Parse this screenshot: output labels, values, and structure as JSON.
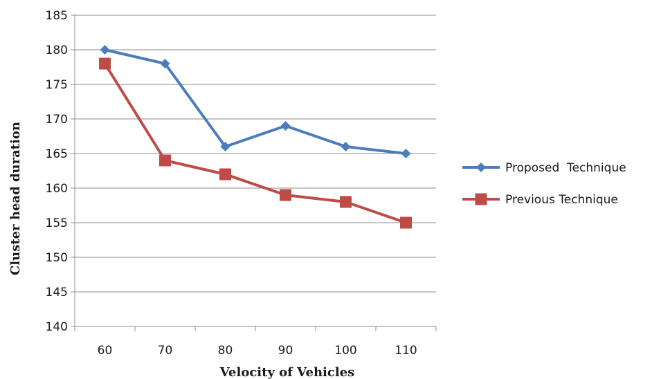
{
  "chart_data": {
    "type": "line",
    "xlabel": "Velocity of Vehicles",
    "ylabel": "Cluster head duration",
    "categories": [
      "60",
      "70",
      "80",
      "90",
      "100",
      "110"
    ],
    "ylim": [
      140,
      185
    ],
    "yticks": [
      140,
      145,
      150,
      155,
      160,
      165,
      170,
      175,
      180,
      185
    ],
    "grid": "horizontal",
    "legend": "right",
    "series": [
      {
        "name": "Proposed  Technique",
        "values": [
          180,
          178,
          166,
          169,
          166,
          165
        ],
        "color": "#4a7ebb",
        "marker": "diamond"
      },
      {
        "name": "Previous Technique",
        "values": [
          178,
          164,
          162,
          159,
          158,
          155
        ],
        "color": "#be4b48",
        "marker": "square"
      }
    ]
  }
}
